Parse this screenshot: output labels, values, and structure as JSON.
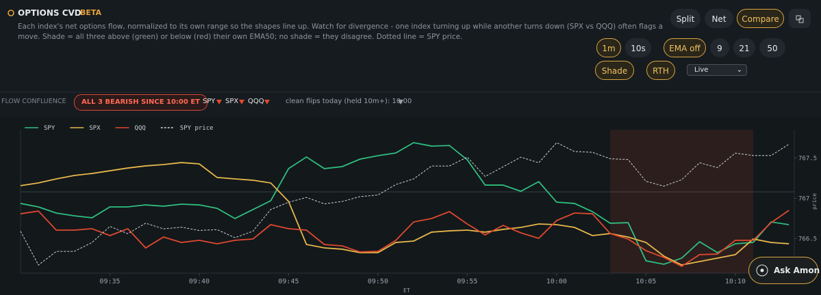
{
  "header": {
    "title": "OPTIONS CVD",
    "badge": "BETA",
    "description": [
      "Each index's net options flow, normalized to its own range so the shapes line up. Watch for divergence - one index turning up while another turns down (SPX vs QQQ) often flags a",
      "move. Shade = all three above (green) or below (red) their own EMA50; no shade = they disagree. Dotted line = SPY price."
    ]
  },
  "controls": {
    "views": [
      "Split",
      "Net",
      "Compare"
    ],
    "intervals": [
      "1m",
      "10s"
    ],
    "ema": [
      "EMA off",
      "9",
      "21",
      "50"
    ],
    "options": [
      "Shade",
      "RTH"
    ],
    "select": "Live"
  },
  "confluence": {
    "label": "FLOW CONFLUENCE",
    "status": "ALL 3 BEARISH SINCE 10:00 ET",
    "tickers": [
      "SPY",
      "SPX",
      "QQQ"
    ],
    "flips": "clean flips today (held 10m+): 10:00"
  },
  "ask_button": "Ask Amon",
  "chart_data": {
    "type": "line",
    "xlabel": "ET",
    "y2label": "price",
    "x": [
      570,
      571,
      572,
      573,
      574,
      575,
      576,
      577,
      578,
      579,
      580,
      581,
      582,
      583,
      584,
      585,
      586,
      587,
      588,
      589,
      590,
      591,
      592,
      593,
      594,
      595,
      596,
      597,
      598,
      599,
      600,
      601,
      602,
      603,
      604,
      605,
      606,
      607,
      608,
      609,
      610,
      611,
      612,
      613
    ],
    "xlim": [
      570,
      613.3
    ],
    "xticks": [
      {
        "value": 575,
        "label": "09:35"
      },
      {
        "value": 580,
        "label": "09:40"
      },
      {
        "value": 585,
        "label": "09:45"
      },
      {
        "value": 590,
        "label": "09:50"
      },
      {
        "value": 595,
        "label": "09:55"
      },
      {
        "value": 600,
        "label": "10:00"
      },
      {
        "value": 605,
        "label": "10:05"
      },
      {
        "value": 610,
        "label": "10:10"
      }
    ],
    "ylim": [
      0,
      100
    ],
    "y2lim": [
      766.07,
      767.85
    ],
    "y2ticks": [
      767.5,
      767,
      766.5
    ],
    "shade_region": [
      603,
      611
    ],
    "shade_color": "#e0492f",
    "series": [
      {
        "name": "SPY",
        "color": "#2fbf7f",
        "values": [
          48.6,
          46.2,
          41.9,
          40,
          38.6,
          46.2,
          46.2,
          47.6,
          46.7,
          48.1,
          47.6,
          45.2,
          38.1,
          44.3,
          50.5,
          72.9,
          81,
          72.9,
          74.3,
          79.5,
          81.9,
          83.8,
          91,
          88.6,
          89,
          79,
          61.4,
          61.4,
          57.1,
          63.8,
          49.5,
          48.6,
          42.9,
          34.8,
          35.2,
          8.6,
          6.2,
          10.5,
          21.9,
          14.3,
          20.5,
          21.4,
          35.7,
          33.8
        ]
      },
      {
        "name": "SPX",
        "color": "#e8b84a",
        "values": [
          61,
          62.9,
          65.7,
          68.1,
          69.5,
          71.4,
          73.3,
          74.8,
          75.7,
          77.1,
          76.2,
          66.7,
          65.7,
          64.8,
          62.9,
          50,
          20,
          17.6,
          16.7,
          14.3,
          14.3,
          21.4,
          22.4,
          28.6,
          29.5,
          30,
          28.6,
          30.5,
          31.9,
          34.3,
          33.8,
          31.9,
          26.2,
          27.6,
          25.2,
          21.4,
          11.9,
          5.7,
          8.1,
          10.5,
          12.9,
          23.8,
          21.4,
          20.5
        ]
      },
      {
        "name": "QQQ",
        "color": "#e0492f",
        "values": [
          41.4,
          43.3,
          30,
          30,
          31,
          26.2,
          31,
          17.6,
          25.2,
          21.4,
          22.9,
          20.5,
          22.9,
          23.8,
          33.8,
          31,
          30,
          20,
          19,
          14.8,
          15.2,
          22.9,
          35.7,
          38.1,
          42.9,
          34.3,
          26.7,
          33.3,
          28.1,
          24.3,
          36.7,
          41.9,
          41.4,
          27.6,
          23.8,
          15.7,
          11,
          4.8,
          12.9,
          13.3,
          22.9,
          22.9,
          35.2,
          43.8
        ]
      },
      {
        "name": "SPY price",
        "color": "#cfd4d8",
        "axis": "y2",
        "dashed": true,
        "values": [
          766.59,
          766.17,
          766.34,
          766.34,
          766.45,
          766.65,
          766.56,
          766.69,
          766.62,
          766.64,
          766.6,
          766.61,
          766.51,
          766.59,
          766.86,
          766.95,
          767.01,
          766.93,
          766.96,
          767.02,
          767.04,
          767.17,
          767.24,
          767.4,
          767.4,
          767.51,
          767.27,
          767.39,
          767.51,
          767.44,
          767.69,
          767.58,
          767.57,
          767.49,
          767.48,
          767.21,
          767.15,
          767.23,
          767.44,
          767.38,
          767.56,
          767.53,
          767.53,
          767.67
        ]
      }
    ]
  }
}
